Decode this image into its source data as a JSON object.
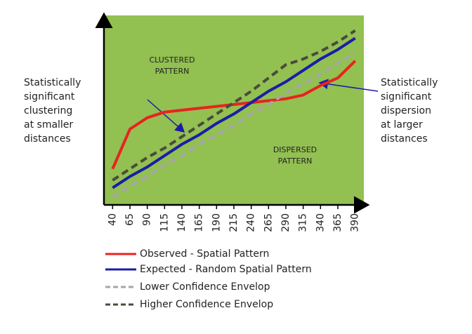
{
  "chart_data": {
    "type": "line",
    "categories": [
      "40",
      "65",
      "90",
      "115",
      "140",
      "165",
      "190",
      "215",
      "240",
      "265",
      "290",
      "315",
      "340",
      "365",
      "390"
    ],
    "ylim": [
      0,
      100
    ],
    "background": "#92c051",
    "series": [
      {
        "name": "Observed - Spatial Pattern",
        "color": "#e8231f",
        "dashed": false,
        "values": [
          19,
          40,
          46,
          49,
          50,
          51,
          52,
          53,
          54,
          55,
          56,
          58,
          63,
          67,
          76
        ]
      },
      {
        "name": "Expected - Random Spatial Pattern",
        "color": "#1c1ca8",
        "dashed": false,
        "values": [
          9,
          15,
          20,
          26,
          32,
          37,
          43,
          48,
          54,
          60,
          65,
          71,
          77,
          82,
          88
        ]
      },
      {
        "name": "Lower Confidence Envelop",
        "color": "#a6a6a6",
        "dashed": true,
        "values": [
          4,
          10,
          15,
          21,
          26,
          32,
          37,
          42,
          48,
          53,
          59,
          64,
          69,
          75,
          80
        ]
      },
      {
        "name": "Higher Confidence Envelop",
        "color": "#4b4b3c",
        "dashed": true,
        "values": [
          13,
          19,
          25,
          30,
          36,
          42,
          48,
          54,
          60,
          67,
          74,
          77,
          81,
          86,
          92
        ]
      }
    ],
    "annotations": {
      "clustered": [
        "CLUSTERED",
        "PATTERN"
      ],
      "dispersed": [
        "DISPERSED",
        "PATTERN"
      ],
      "left_note": [
        "Statistically",
        "significant",
        "clustering",
        "at smaller",
        "distances"
      ],
      "right_note": [
        "Statistically",
        "significant",
        "dispersion",
        "at larger",
        "distances"
      ]
    }
  }
}
